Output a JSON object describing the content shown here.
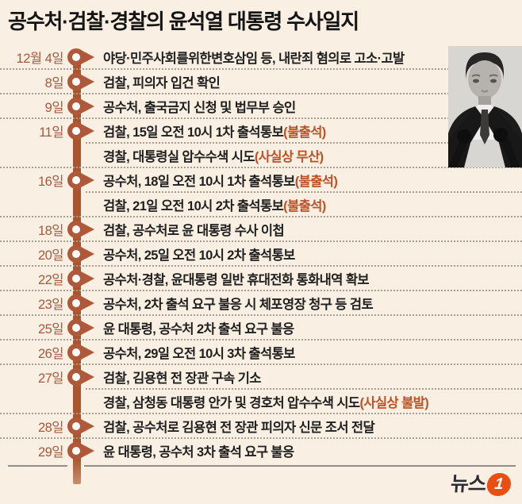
{
  "title": "공수처·검찰·경찰의 윤석열 대통령 수사일지",
  "colors": {
    "background": "#f9efe2",
    "timeline_accent": "#b0583a",
    "timeline_line": "#a9552e",
    "date_text": "#a35a3e",
    "event_text": "#1f1f1f",
    "note_text": "#bd5227",
    "brand_orange": "#e94e12"
  },
  "timeline": {
    "groups": [
      {
        "date": "12월 4일",
        "events": [
          {
            "text": "야당·민주사회를위한변호삼임 등, 내란죄 혐의로 고소·고발",
            "note": ""
          }
        ]
      },
      {
        "date": "8일",
        "events": [
          {
            "text": "검찰, 피의자 입건 확인",
            "note": ""
          }
        ]
      },
      {
        "date": "9일",
        "events": [
          {
            "text": "공수처, 출국금지 신청 및 법무부 승인",
            "note": ""
          }
        ]
      },
      {
        "date": "11일",
        "events": [
          {
            "text": "검찰, 15일 오전 10시 1차 출석통보",
            "note": "(불출석)"
          },
          {
            "text": "경찰, 대통령실 압수수색 시도",
            "note": "(사실상 무산)"
          }
        ]
      },
      {
        "date": "16일",
        "events": [
          {
            "text": "공수처, 18일 오전 10시 1차 출석통보",
            "note": "(불출석)"
          },
          {
            "text": "검찰, 21일 오전 10시 2차 출석통보",
            "note": "(불출석)"
          }
        ]
      },
      {
        "date": "18일",
        "events": [
          {
            "text": "검찰, 공수처로 윤 대통령 수사 이첩",
            "note": ""
          }
        ]
      },
      {
        "date": "20일",
        "events": [
          {
            "text": "공수처, 25일 오전 10시 2차 출석통보",
            "note": ""
          }
        ]
      },
      {
        "date": "22일",
        "events": [
          {
            "text": "공수처·경찰, 윤대통령 일반 휴대전화 통화내역 확보",
            "note": ""
          }
        ]
      },
      {
        "date": "23일",
        "events": [
          {
            "text": "공수처, 2차 출석 요구 불응 시 체포영장 청구 등 검토",
            "note": ""
          }
        ]
      },
      {
        "date": "25일",
        "events": [
          {
            "text": "윤 대통령, 공수처 2차 출석 요구 불응",
            "note": ""
          }
        ]
      },
      {
        "date": "26일",
        "events": [
          {
            "text": "공수처, 29일 오전 10시 3차 출석통보",
            "note": ""
          }
        ]
      },
      {
        "date": "27일",
        "events": [
          {
            "text": "검찰, 김용현 전 장관 구속 기소",
            "note": ""
          },
          {
            "text": "경찰, 삼청동 대통령 안가 및 경호처 압수수색 시도",
            "note": "(사실상 불발)"
          }
        ]
      },
      {
        "date": "28일",
        "events": [
          {
            "text": "검찰, 공수처로 김용현 전 장관 피의자 신문 조서 전달",
            "note": ""
          }
        ]
      },
      {
        "date": "29일",
        "events": [
          {
            "text": "윤 대통령, 공수처 3차 출석 요구 불응",
            "note": ""
          }
        ]
      }
    ]
  },
  "footer": {
    "brand_text": "뉴스",
    "brand_mark": "1"
  }
}
